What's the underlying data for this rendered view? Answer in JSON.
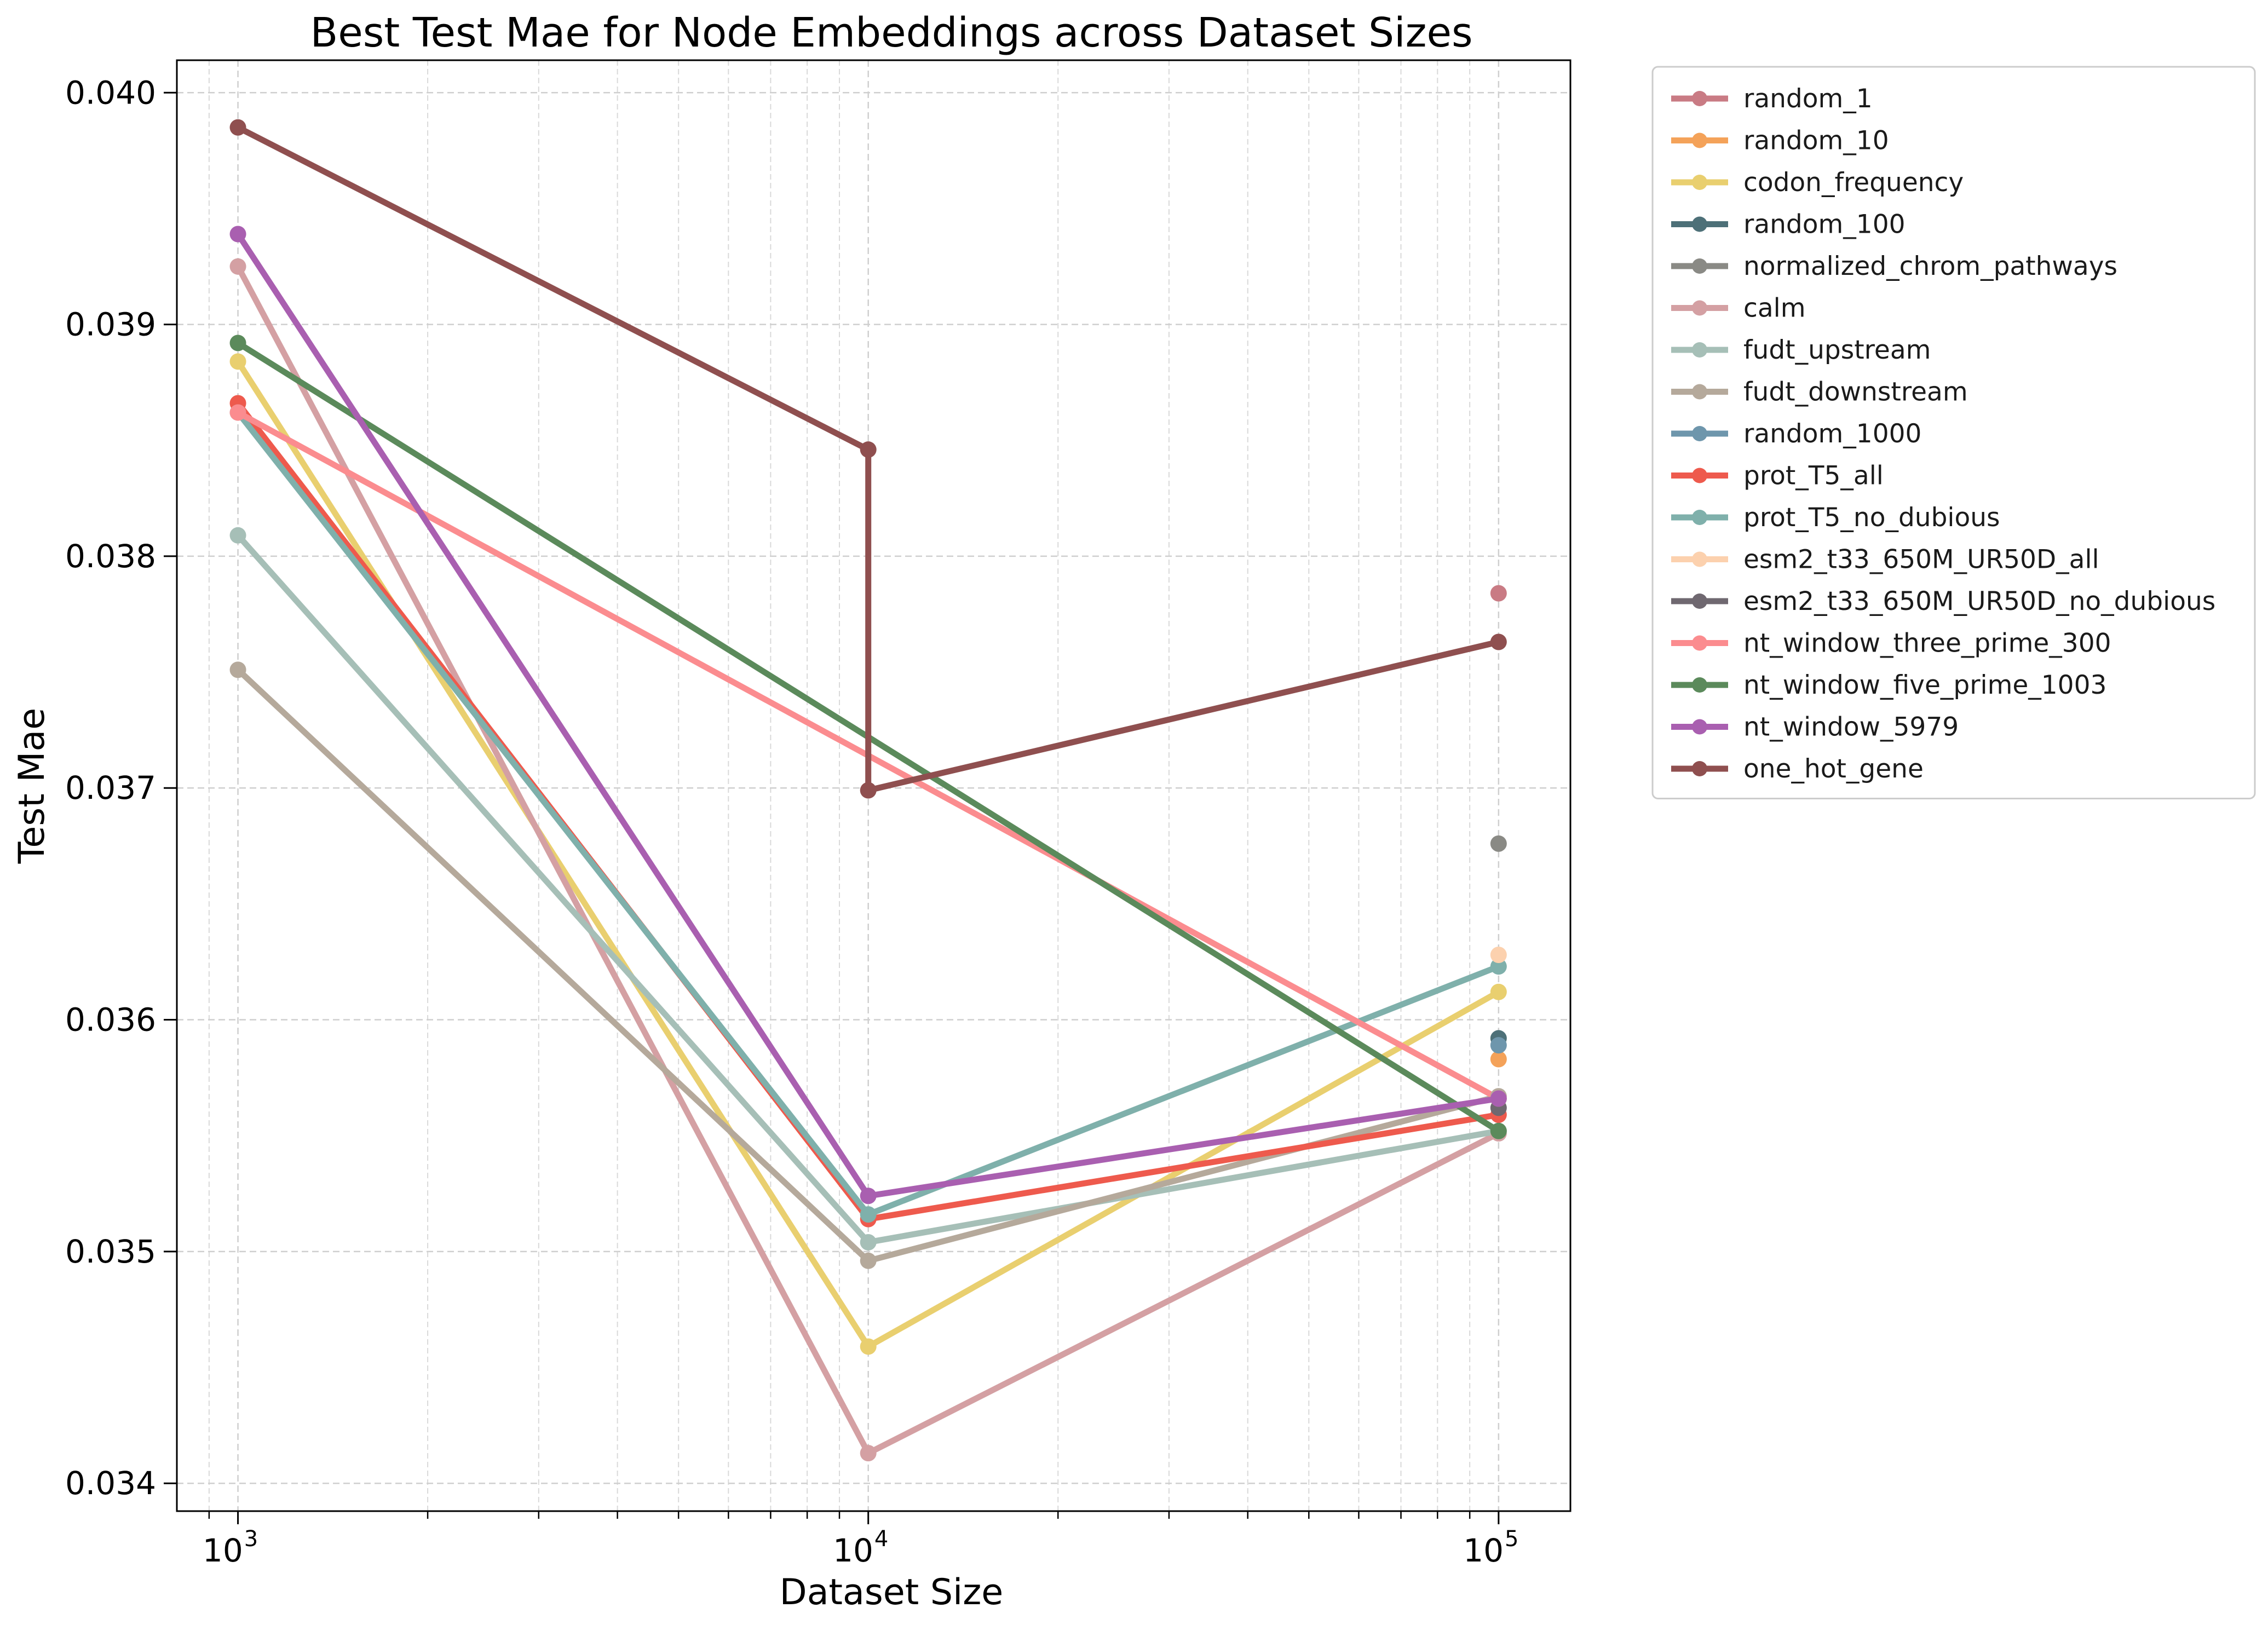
{
  "chart_data": {
    "type": "line",
    "title": "Best Test Mae for Node Embeddings across Dataset Sizes",
    "xlabel": "Dataset Size",
    "ylabel": "Test Mae",
    "xscale": "log",
    "xlim": [
      800,
      130000
    ],
    "ylim": [
      0.03388,
      0.04014
    ],
    "grid": true,
    "legend_position": "outside-right",
    "x_ticks": [
      {
        "value": 1000,
        "base": "10",
        "exp": "3"
      },
      {
        "value": 10000,
        "base": "10",
        "exp": "4"
      },
      {
        "value": 100000,
        "base": "10",
        "exp": "5"
      }
    ],
    "y_ticks": [
      {
        "value": 0.034,
        "label": "0.034"
      },
      {
        "value": 0.035,
        "label": "0.035"
      },
      {
        "value": 0.036,
        "label": "0.036"
      },
      {
        "value": 0.037,
        "label": "0.037"
      },
      {
        "value": 0.038,
        "label": "0.038"
      },
      {
        "value": 0.039,
        "label": "0.039"
      },
      {
        "value": 0.04,
        "label": "0.040"
      }
    ],
    "series": [
      {
        "name": "random_1",
        "color": "#c97b84",
        "points": [
          [
            100000,
            0.03784
          ]
        ]
      },
      {
        "name": "random_10",
        "color": "#f4a259",
        "points": [
          [
            100000,
            0.03583
          ]
        ]
      },
      {
        "name": "codon_frequency",
        "color": "#e9cf6f",
        "points": [
          [
            1000,
            0.03884
          ],
          [
            10000,
            0.03459
          ],
          [
            100000,
            0.03612
          ]
        ]
      },
      {
        "name": "random_100",
        "color": "#4d7078",
        "points": [
          [
            100000,
            0.03592
          ]
        ]
      },
      {
        "name": "normalized_chrom_pathways",
        "color": "#8a8a85",
        "points": [
          [
            100000,
            0.03676
          ]
        ]
      },
      {
        "name": "calm",
        "color": "#d4a0a3",
        "points": [
          [
            1000,
            0.03925
          ],
          [
            10000,
            0.03413
          ],
          [
            100000,
            0.03551
          ]
        ]
      },
      {
        "name": "fudt_upstream",
        "color": "#a6bfb7",
        "points": [
          [
            1000,
            0.03809
          ],
          [
            10000,
            0.03504
          ],
          [
            100000,
            0.03552
          ]
        ]
      },
      {
        "name": "fudt_downstream",
        "color": "#b5a99b",
        "points": [
          [
            1000,
            0.03751
          ],
          [
            10000,
            0.03496
          ],
          [
            100000,
            0.03567
          ]
        ]
      },
      {
        "name": "random_1000",
        "color": "#6e96ac",
        "points": [
          [
            100000,
            0.03589
          ]
        ]
      },
      {
        "name": "prot_T5_all",
        "color": "#ee5a4d",
        "points": [
          [
            1000,
            0.03866
          ],
          [
            10000,
            0.03514
          ],
          [
            100000,
            0.03559
          ]
        ]
      },
      {
        "name": "prot_T5_no_dubious",
        "color": "#7fb0ab",
        "points": [
          [
            1000,
            0.03862
          ],
          [
            10000,
            0.03516
          ],
          [
            100000,
            0.03623
          ]
        ]
      },
      {
        "name": "esm2_t33_650M_UR50D_all",
        "color": "#fcd1ae",
        "points": [
          [
            100000,
            0.03628
          ]
        ]
      },
      {
        "name": "esm2_t33_650M_UR50D_no_dubious",
        "color": "#6f6870",
        "points": [
          [
            100000,
            0.03562
          ]
        ]
      },
      {
        "name": "nt_window_three_prime_300",
        "color": "#fb8c8f",
        "points": [
          [
            1000,
            0.03862
          ],
          [
            100000,
            0.03566
          ]
        ]
      },
      {
        "name": "nt_window_five_prime_1003",
        "color": "#5b8a5b",
        "points": [
          [
            1000,
            0.03892
          ],
          [
            100000,
            0.03552
          ]
        ]
      },
      {
        "name": "nt_window_5979",
        "color": "#a95fb0",
        "points": [
          [
            1000,
            0.03939
          ],
          [
            10000,
            0.03524
          ],
          [
            100000,
            0.03566
          ]
        ]
      },
      {
        "name": "one_hot_gene",
        "color": "#8f4f4f",
        "points": [
          [
            1000,
            0.03985
          ],
          [
            10000,
            0.03846
          ],
          [
            10000,
            0.03699
          ],
          [
            100000,
            0.03763
          ]
        ]
      }
    ]
  }
}
